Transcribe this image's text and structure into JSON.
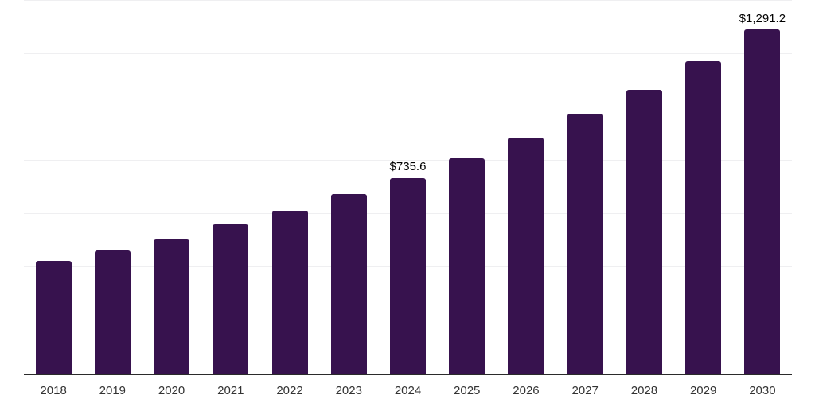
{
  "chart_data": {
    "type": "bar",
    "title": "",
    "xlabel": "",
    "ylabel": "",
    "categories": [
      "2018",
      "2019",
      "2020",
      "2021",
      "2022",
      "2023",
      "2024",
      "2025",
      "2026",
      "2027",
      "2028",
      "2029",
      "2030"
    ],
    "values": [
      424,
      462,
      504,
      560,
      611,
      674,
      735.6,
      808,
      886,
      975,
      1067,
      1174,
      1291.2
    ],
    "bar_labels": [
      "",
      "",
      "",
      "",
      "",
      "",
      "$735.6",
      "",
      "",
      "",
      "",
      "",
      "$1,291.2"
    ],
    "ylim": [
      0,
      1400
    ],
    "gridline_interval": 200,
    "grid": "horizontal",
    "y_axis_tick_labels_visible": false,
    "legend_position": "none",
    "colors": {
      "bar": "#37124e",
      "axis_line": "#2b2b2b",
      "gridline": "#efeff1",
      "bar_label_text": "#000000",
      "tick_label_text": "#333333",
      "background": "#ffffff"
    }
  }
}
